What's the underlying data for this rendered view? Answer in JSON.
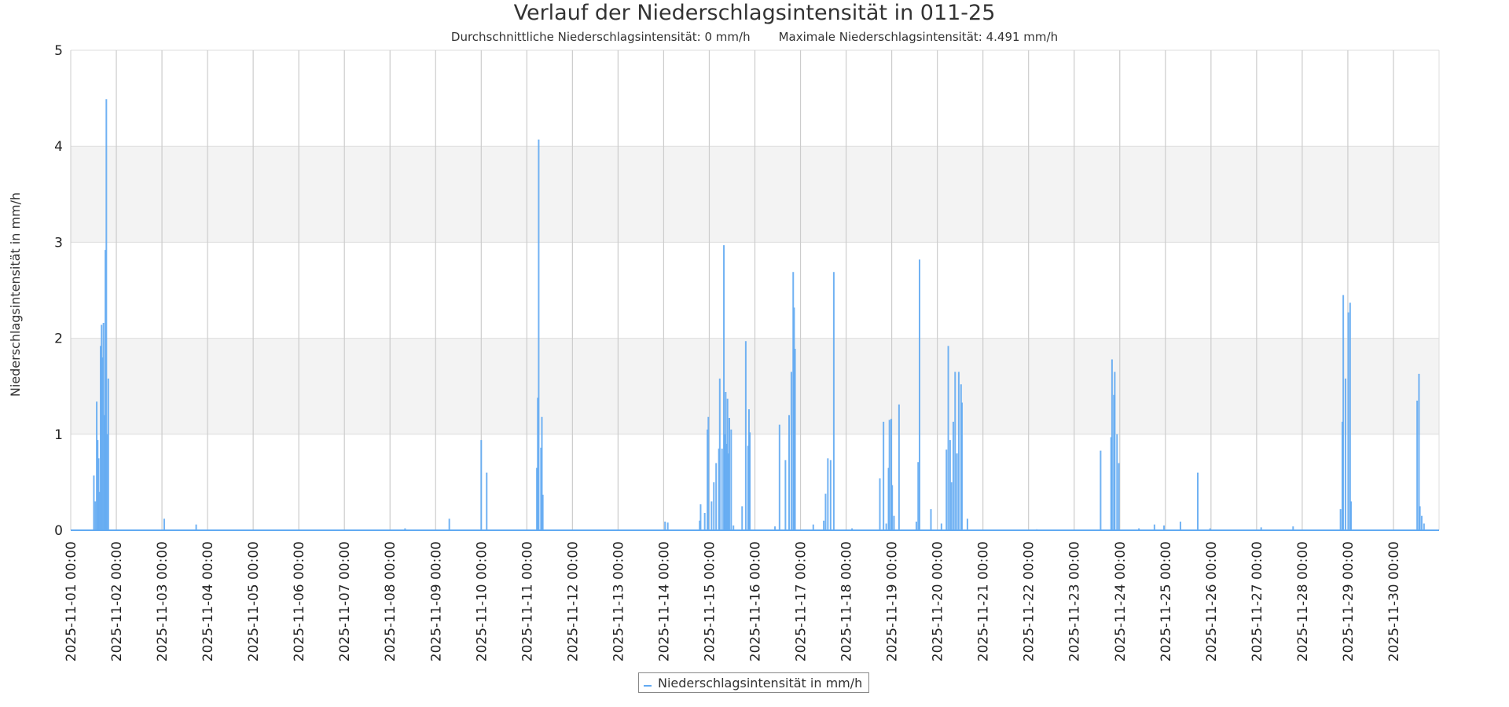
{
  "chart_data": {
    "type": "line",
    "title": "Verlauf der Niederschlagsintensität in 011-25",
    "subtitle_avg": "Durchschnittliche Niederschlagsintensität: 0 mm/h",
    "subtitle_max": "Maximale Niederschlagsintensität: 4.491 mm/h",
    "ylabel": "Niederschlagsintensität in mm/h",
    "xlabel": "",
    "ylim": [
      0,
      5
    ],
    "yticks": [
      "0",
      "1",
      "2",
      "3",
      "4",
      "5"
    ],
    "x_start": "2025-11-01 00:00",
    "x_range_days": [
      0,
      30
    ],
    "xticks": [
      "2025-11-01 00:00",
      "2025-11-02 00:00",
      "2025-11-03 00:00",
      "2025-11-04 00:00",
      "2025-11-05 00:00",
      "2025-11-06 00:00",
      "2025-11-07 00:00",
      "2025-11-08 00:00",
      "2025-11-09 00:00",
      "2025-11-10 00:00",
      "2025-11-11 00:00",
      "2025-11-12 00:00",
      "2025-11-13 00:00",
      "2025-11-14 00:00",
      "2025-11-15 00:00",
      "2025-11-16 00:00",
      "2025-11-17 00:00",
      "2025-11-18 00:00",
      "2025-11-19 00:00",
      "2025-11-20 00:00",
      "2025-11-21 00:00",
      "2025-11-22 00:00",
      "2025-11-23 00:00",
      "2025-11-24 00:00",
      "2025-11-25 00:00",
      "2025-11-26 00:00",
      "2025-11-27 00:00",
      "2025-11-28 00:00",
      "2025-11-29 00:00",
      "2025-11-30 00:00"
    ],
    "grid": true,
    "legend_position": "bottom-center",
    "series": [
      {
        "name": "Niederschlagsintensität in mm/h",
        "color": "#62aaf2",
        "points_days_value": [
          [
            0.507,
            0.57
          ],
          [
            0.54,
            0.3
          ],
          [
            0.57,
            1.34
          ],
          [
            0.591,
            0.94
          ],
          [
            0.612,
            0.75
          ],
          [
            0.63,
            0.4
          ],
          [
            0.655,
            1.92
          ],
          [
            0.676,
            2.14
          ],
          [
            0.697,
            1.8
          ],
          [
            0.718,
            2.16
          ],
          [
            0.74,
            1.2
          ],
          [
            0.76,
            2.92
          ],
          [
            0.781,
            4.491
          ],
          [
            0.8,
            1.0
          ],
          [
            0.824,
            1.58
          ],
          [
            2.05,
            0.12
          ],
          [
            2.75,
            0.06
          ],
          [
            7.33,
            0.02
          ],
          [
            8.3,
            0.12
          ],
          [
            9.0,
            0.94
          ],
          [
            9.12,
            0.6
          ],
          [
            10.22,
            0.65
          ],
          [
            10.24,
            1.38
          ],
          [
            10.26,
            4.07
          ],
          [
            10.31,
            0.86
          ],
          [
            10.33,
            1.18
          ],
          [
            10.35,
            0.37
          ],
          [
            13.03,
            0.09
          ],
          [
            13.09,
            0.08
          ],
          [
            13.79,
            0.1
          ],
          [
            13.81,
            0.27
          ],
          [
            13.9,
            0.18
          ],
          [
            13.96,
            1.05
          ],
          [
            13.98,
            1.18
          ],
          [
            14.05,
            0.3
          ],
          [
            14.1,
            0.5
          ],
          [
            14.15,
            0.7
          ],
          [
            14.21,
            0.85
          ],
          [
            14.23,
            1.58
          ],
          [
            14.28,
            0.85
          ],
          [
            14.32,
            2.97
          ],
          [
            14.34,
            1.0
          ],
          [
            14.36,
            1.44
          ],
          [
            14.38,
            0.9
          ],
          [
            14.4,
            1.37
          ],
          [
            14.42,
            0.8
          ],
          [
            14.44,
            1.17
          ],
          [
            14.48,
            1.05
          ],
          [
            14.53,
            0.05
          ],
          [
            14.72,
            0.25
          ],
          [
            14.8,
            1.97
          ],
          [
            14.85,
            0.88
          ],
          [
            14.87,
            1.26
          ],
          [
            14.89,
            1.02
          ],
          [
            15.44,
            0.04
          ],
          [
            15.54,
            1.1
          ],
          [
            15.67,
            0.73
          ],
          [
            15.75,
            1.2
          ],
          [
            15.8,
            1.65
          ],
          [
            15.84,
            2.69
          ],
          [
            15.86,
            2.32
          ],
          [
            15.88,
            1.89
          ],
          [
            16.28,
            0.06
          ],
          [
            16.51,
            0.1
          ],
          [
            16.55,
            0.38
          ],
          [
            16.6,
            0.75
          ],
          [
            16.66,
            0.73
          ],
          [
            16.73,
            2.69
          ],
          [
            17.13,
            0.02
          ],
          [
            17.74,
            0.54
          ],
          [
            17.82,
            1.13
          ],
          [
            17.88,
            0.07
          ],
          [
            17.93,
            0.65
          ],
          [
            17.95,
            1.15
          ],
          [
            17.99,
            1.16
          ],
          [
            18.01,
            0.47
          ],
          [
            18.05,
            0.15
          ],
          [
            18.16,
            1.31
          ],
          [
            18.54,
            0.09
          ],
          [
            18.58,
            0.71
          ],
          [
            18.61,
            2.82
          ],
          [
            18.86,
            0.22
          ],
          [
            19.09,
            0.07
          ],
          [
            19.2,
            0.84
          ],
          [
            19.24,
            1.92
          ],
          [
            19.28,
            0.94
          ],
          [
            19.31,
            0.5
          ],
          [
            19.35,
            1.13
          ],
          [
            19.39,
            1.65
          ],
          [
            19.43,
            0.8
          ],
          [
            19.47,
            1.65
          ],
          [
            19.52,
            1.52
          ],
          [
            19.54,
            1.33
          ],
          [
            19.66,
            0.12
          ],
          [
            21.18,
            0.01
          ],
          [
            22.58,
            0.83
          ],
          [
            22.81,
            0.97
          ],
          [
            22.83,
            1.78
          ],
          [
            22.87,
            1.41
          ],
          [
            22.89,
            1.65
          ],
          [
            22.94,
            1.0
          ],
          [
            22.98,
            0.7
          ],
          [
            23.42,
            0.02
          ],
          [
            23.76,
            0.06
          ],
          [
            23.97,
            0.05
          ],
          [
            24.33,
            0.09
          ],
          [
            24.71,
            0.6
          ],
          [
            24.98,
            0.02
          ],
          [
            26.1,
            0.03
          ],
          [
            26.8,
            0.04
          ],
          [
            27.84,
            0.22
          ],
          [
            27.88,
            1.13
          ],
          [
            27.9,
            2.45
          ],
          [
            27.95,
            1.58
          ],
          [
            28.01,
            2.27
          ],
          [
            28.05,
            2.37
          ],
          [
            28.07,
            0.3
          ],
          [
            29.52,
            1.35
          ],
          [
            29.56,
            1.63
          ],
          [
            29.58,
            0.25
          ],
          [
            29.62,
            0.15
          ],
          [
            29.67,
            0.07
          ]
        ]
      }
    ]
  }
}
